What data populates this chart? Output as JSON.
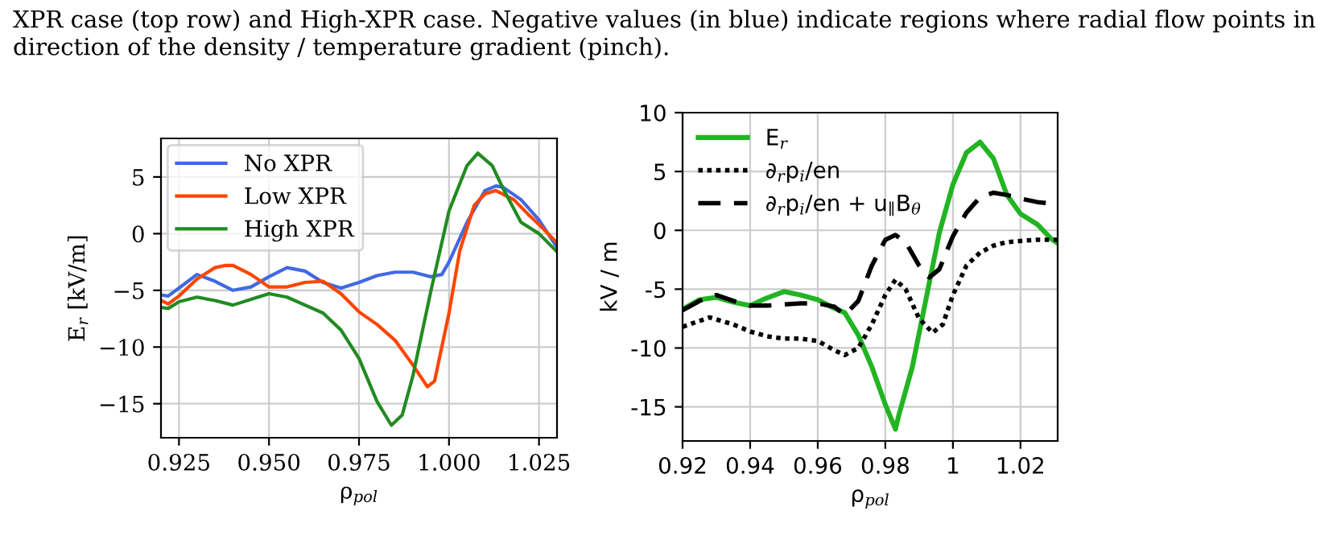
{
  "chart_data": [
    {
      "type": "line",
      "xlabel": "ρ$_{pol}$",
      "ylabel": "E$_{r}$ [kV/m]",
      "annotations": [
        "XPR case (top row) and High-XPR case. Negative values (in blue) indicate regions where radial flow points in direction of the density / temperature gradient (pinch)."
      ],
      "xlim": [
        0.92,
        1.03
      ],
      "ylim": [
        -18.0,
        8.4
      ],
      "xticks": [
        {
          "value": 0.925,
          "label": "0.925"
        },
        {
          "value": 0.95,
          "label": "0.950"
        },
        {
          "value": 0.975,
          "label": "0.975"
        },
        {
          "value": 1.0,
          "label": "1.000"
        },
        {
          "value": 1.025,
          "label": "1.025"
        }
      ],
      "yticks": [
        {
          "value": -15,
          "label": "−15"
        },
        {
          "value": -10,
          "label": "−10"
        },
        {
          "value": -5,
          "label": "−5"
        },
        0,
        5
      ],
      "grid": true,
      "legend": "top left",
      "line_style": "solid",
      "marker": "none",
      "series": [
        {
          "name": "No XPR",
          "color": "#4169e1",
          "x": [
            0.92,
            0.922,
            0.925,
            0.93,
            0.935,
            0.94,
            0.945,
            0.95,
            0.955,
            0.96,
            0.965,
            0.97,
            0.975,
            0.98,
            0.985,
            0.99,
            0.995,
            0.998,
            1.0,
            1.005,
            1.01,
            1.013,
            1.015,
            1.02,
            1.025,
            1.03
          ],
          "values": [
            -5.4,
            -5.5,
            -4.8,
            -3.6,
            -4.2,
            -5.0,
            -4.7,
            -3.8,
            -3.0,
            -3.3,
            -4.3,
            -4.8,
            -4.3,
            -3.7,
            -3.4,
            -3.4,
            -3.8,
            -3.6,
            -2.5,
            1.0,
            3.8,
            4.2,
            4.1,
            3.0,
            1.2,
            -1.2
          ]
        },
        {
          "name": "Low XPR",
          "color": "#ff4500",
          "x": [
            0.92,
            0.922,
            0.925,
            0.93,
            0.935,
            0.938,
            0.94,
            0.945,
            0.95,
            0.955,
            0.96,
            0.965,
            0.97,
            0.975,
            0.98,
            0.985,
            0.99,
            0.994,
            0.996,
            1.0,
            1.003,
            1.007,
            1.01,
            1.013,
            1.018,
            1.022,
            1.025,
            1.03
          ],
          "values": [
            -5.9,
            -6.2,
            -5.5,
            -4.0,
            -3.0,
            -2.8,
            -2.8,
            -3.6,
            -4.7,
            -4.7,
            -4.3,
            -4.2,
            -5.3,
            -6.9,
            -8.0,
            -9.4,
            -11.6,
            -13.5,
            -13.0,
            -7.0,
            -1.5,
            2.5,
            3.5,
            3.8,
            3.0,
            1.7,
            0.8,
            -0.8
          ]
        },
        {
          "name": "High XPR",
          "color": "#228b22",
          "x": [
            0.92,
            0.922,
            0.925,
            0.93,
            0.935,
            0.94,
            0.945,
            0.95,
            0.955,
            0.96,
            0.965,
            0.97,
            0.975,
            0.98,
            0.984,
            0.987,
            0.99,
            0.995,
            1.0,
            1.005,
            1.008,
            1.012,
            1.015,
            1.02,
            1.025,
            1.03
          ],
          "values": [
            -6.5,
            -6.6,
            -6.0,
            -5.6,
            -5.9,
            -6.3,
            -5.8,
            -5.3,
            -5.6,
            -6.3,
            -7.0,
            -8.5,
            -11.0,
            -14.8,
            -16.9,
            -16.0,
            -12.5,
            -5.0,
            2.0,
            6.0,
            7.1,
            6.0,
            4.0,
            1.0,
            0.0,
            -1.6
          ]
        }
      ]
    },
    {
      "type": "line",
      "xlabel": "ρ$_{pol}$",
      "ylabel": "kV / m",
      "xlim": [
        0.92,
        1.031
      ],
      "ylim": [
        -17.9,
        10
      ],
      "xticks": [
        0.92,
        0.94,
        0.96,
        0.98,
        {
          "value": 1.0,
          "label": "1"
        },
        1.02
      ],
      "yticks": [
        {
          "value": -15,
          "label": "-15"
        },
        {
          "value": -10,
          "label": "-10"
        },
        {
          "value": -5,
          "label": "-5"
        },
        0,
        5,
        10
      ],
      "grid": true,
      "legend": "top left",
      "marker": "none",
      "series": [
        {
          "name": "E$_{r}$",
          "color": "#22b422",
          "line_style": "solid",
          "x": [
            0.92,
            0.925,
            0.93,
            0.935,
            0.94,
            0.9445,
            0.95,
            0.955,
            0.96,
            0.9647,
            0.968,
            0.972,
            0.976,
            0.98,
            0.983,
            0.984,
            0.988,
            0.992,
            0.996,
            1.0,
            1.004,
            1.008,
            1.012,
            1.016,
            1.02,
            1.025,
            1.029,
            1.031
          ],
          "values": [
            -6.7,
            -5.9,
            -5.7,
            -6.1,
            -6.4,
            -5.8,
            -5.2,
            -5.5,
            -5.9,
            -6.6,
            -7.0,
            -8.9,
            -11.6,
            -14.8,
            -16.9,
            -15.7,
            -11.6,
            -5.9,
            -0.2,
            3.9,
            6.6,
            7.5,
            6.1,
            3.0,
            1.4,
            0.5,
            -0.7,
            -1.1
          ]
        },
        {
          "name": "∂$_{r}$p$_{i}$/en",
          "color": "#000000",
          "line_style": "dotted",
          "x": [
            0.92,
            0.928,
            0.935,
            0.94,
            0.945,
            0.95,
            0.955,
            0.96,
            0.965,
            0.968,
            0.972,
            0.976,
            0.98,
            0.983,
            0.986,
            0.99,
            0.994,
            0.997,
            1.0,
            1.004,
            1.008,
            1.012,
            1.016,
            1.02,
            1.025,
            1.031
          ],
          "values": [
            -8.2,
            -7.4,
            -8.0,
            -8.6,
            -9.0,
            -9.2,
            -9.2,
            -9.4,
            -10.2,
            -10.6,
            -10.0,
            -8.0,
            -5.5,
            -4.2,
            -5.0,
            -7.5,
            -8.7,
            -8.0,
            -5.5,
            -3.0,
            -1.9,
            -1.3,
            -1.0,
            -0.9,
            -0.8,
            -0.8
          ]
        },
        {
          "name": "∂$_{r}$p$_{i}$/en + u$_{∥}$B$_{θ}$",
          "color": "#000000",
          "line_style": "dashed",
          "x": [
            0.92,
            0.925,
            0.93,
            0.935,
            0.94,
            0.945,
            0.95,
            0.955,
            0.96,
            0.965,
            0.968,
            0.972,
            0.976,
            0.98,
            0.983,
            0.986,
            0.99,
            0.993,
            0.996,
            1.0,
            1.004,
            1.008,
            1.012,
            1.016,
            1.02,
            1.025,
            1.031
          ],
          "values": [
            -6.8,
            -6.0,
            -5.5,
            -6.0,
            -6.4,
            -6.4,
            -6.3,
            -6.2,
            -6.2,
            -6.5,
            -7.2,
            -6.0,
            -3.0,
            -0.8,
            -0.4,
            -1.0,
            -3.0,
            -4.0,
            -3.3,
            -0.5,
            1.5,
            2.8,
            3.2,
            3.0,
            2.7,
            2.4,
            2.2
          ]
        }
      ]
    }
  ]
}
